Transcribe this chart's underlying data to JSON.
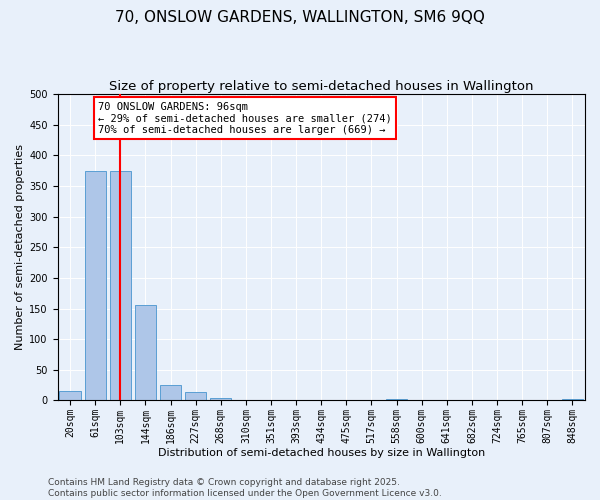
{
  "title": "70, ONSLOW GARDENS, WALLINGTON, SM6 9QQ",
  "subtitle": "Size of property relative to semi-detached houses in Wallington",
  "xlabel": "Distribution of semi-detached houses by size in Wallington",
  "ylabel": "Number of semi-detached properties",
  "categories": [
    "20sqm",
    "61sqm",
    "103sqm",
    "144sqm",
    "186sqm",
    "227sqm",
    "268sqm",
    "310sqm",
    "351sqm",
    "393sqm",
    "434sqm",
    "475sqm",
    "517sqm",
    "558sqm",
    "600sqm",
    "641sqm",
    "682sqm",
    "724sqm",
    "765sqm",
    "807sqm",
    "848sqm"
  ],
  "values": [
    15,
    375,
    375,
    155,
    25,
    13,
    4,
    0,
    0,
    0,
    0,
    0,
    0,
    3,
    0,
    0,
    0,
    0,
    0,
    0,
    3
  ],
  "bar_color": "#aec6e8",
  "bar_edge_color": "#5a9fd4",
  "vline_x": 2,
  "vline_color": "red",
  "annotation_text": "70 ONSLOW GARDENS: 96sqm\n← 29% of semi-detached houses are smaller (274)\n70% of semi-detached houses are larger (669) →",
  "annotation_box_color": "white",
  "annotation_box_edge_color": "red",
  "ylim": [
    0,
    500
  ],
  "yticks": [
    0,
    50,
    100,
    150,
    200,
    250,
    300,
    350,
    400,
    450,
    500
  ],
  "footer_text": "Contains HM Land Registry data © Crown copyright and database right 2025.\nContains public sector information licensed under the Open Government Licence v3.0.",
  "background_color": "#e8f0fa",
  "title_fontsize": 11,
  "subtitle_fontsize": 9.5,
  "axis_label_fontsize": 8,
  "tick_fontsize": 7,
  "annotation_fontsize": 7.5,
  "footer_fontsize": 6.5
}
